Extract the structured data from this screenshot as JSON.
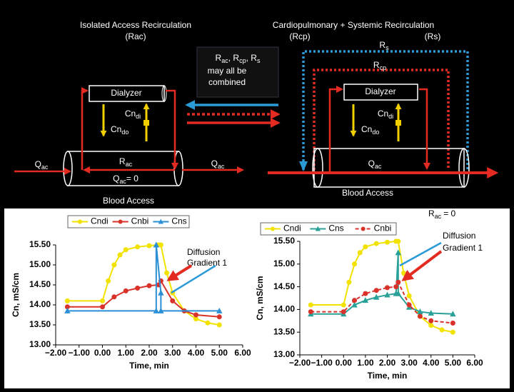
{
  "diagram": {
    "left": {
      "title": "Isolated Access Recirculation",
      "subtitle": "(Rac)",
      "dialyzer": "Dialyzer",
      "cn_di": {
        "base": "Cn",
        "sub": "di"
      },
      "cn_do": {
        "base": "Cn",
        "sub": "do"
      },
      "q_in": {
        "base": "Q",
        "sub": "ac"
      },
      "q_out": {
        "base": "Q",
        "sub": "ac"
      },
      "r_ac": {
        "base": "R",
        "sub": "ac"
      },
      "q_zero": {
        "base": "Q",
        "sub": "ac",
        "rest": "= 0"
      },
      "access": "Blood Access"
    },
    "note": {
      "line1": [
        {
          "base": "R",
          "sub": "ac"
        },
        {
          "base": ", R",
          "sub": "cp"
        },
        {
          "base": ", R",
          "sub": "s"
        }
      ],
      "line2": "may all be",
      "line3": "combined"
    },
    "right": {
      "title": "Cardiopulmonary + Systemic Recirculation",
      "rcp": "(Rcp)",
      "rs": "(Rs)",
      "r_s": {
        "base": "R",
        "sub": "s"
      },
      "r_cp": {
        "base": "R",
        "sub": "cp"
      },
      "dialyzer": "Dialyzer",
      "cn_di": {
        "base": "Cn",
        "sub": "di"
      },
      "cn_do": {
        "base": "Cn",
        "sub": "do"
      },
      "q_ac": {
        "base": "Q",
        "sub": "ac"
      },
      "access": "Blood Access"
    }
  },
  "chart_data": [
    {
      "type": "line",
      "x_label": "Time, min",
      "y_label": "Cn, mS/cm",
      "annotation": [
        "Diffusion",
        "Gradient 1"
      ],
      "xlim": [
        -2,
        6
      ],
      "ylim": [
        13,
        15.5
      ],
      "xticks": [
        {
          "value": -2,
          "label": "−2.00"
        },
        {
          "value": -1,
          "label": "−1.00"
        },
        {
          "value": 0,
          "label": "0.00"
        },
        {
          "value": 1,
          "label": "1.00"
        },
        {
          "value": 2,
          "label": "2.00"
        },
        {
          "value": 3,
          "label": "3.00"
        },
        {
          "value": 4,
          "label": "4.00"
        },
        {
          "value": 5,
          "label": "5.00"
        },
        {
          "value": 6,
          "label": "6.00"
        }
      ],
      "yticks": [
        {
          "value": 13,
          "label": "13.00"
        },
        {
          "value": 13.5,
          "label": "13.50"
        },
        {
          "value": 14,
          "label": "14.00"
        },
        {
          "value": 14.5,
          "label": "14.50"
        },
        {
          "value": 15,
          "label": "15.00"
        },
        {
          "value": 15.5,
          "label": "15.50"
        }
      ],
      "series": [
        {
          "name": "Cndi",
          "color": "#f2e200",
          "marker": "circle",
          "dash": false,
          "x": [
            -1.5,
            0,
            0.25,
            0.5,
            0.75,
            1.0,
            1.5,
            2.0,
            2.4,
            2.5,
            2.75,
            3.0,
            3.5,
            4.0,
            4.5,
            5.0
          ],
          "values": [
            14.1,
            14.1,
            14.6,
            15.0,
            15.25,
            15.38,
            15.45,
            15.48,
            15.5,
            15.5,
            14.8,
            14.3,
            13.85,
            13.65,
            13.55,
            13.5
          ]
        },
        {
          "name": "Cnbi",
          "color": "#d8322a",
          "marker": "circle",
          "dash": false,
          "x": [
            -1.5,
            0,
            0.5,
            1.0,
            1.5,
            2.0,
            2.4,
            2.5,
            3.0,
            3.5,
            4.0,
            5.0
          ],
          "values": [
            13.95,
            13.95,
            14.2,
            14.35,
            14.42,
            14.48,
            14.5,
            14.6,
            14.1,
            13.85,
            13.75,
            13.7
          ]
        },
        {
          "name": "Cns",
          "color": "#2b8fd6",
          "marker": "triangle",
          "dash": false,
          "x": [
            -1.5,
            2.3,
            2.3,
            2.5,
            2.5,
            5.0
          ],
          "values": [
            13.85,
            13.85,
            15.5,
            14.3,
            13.85,
            13.85
          ]
        }
      ]
    },
    {
      "type": "line",
      "x_label": "Time, min",
      "y_label": "Cn, mS/cm",
      "annotation": [
        "Diffusion",
        "Gradient 1"
      ],
      "note": {
        "base": "R",
        "sub": "ac",
        "rest": "= 0"
      },
      "xlim": [
        -2,
        6
      ],
      "ylim": [
        13,
        15.5
      ],
      "xticks": [
        {
          "value": -2,
          "label": "−2.00"
        },
        {
          "value": -1,
          "label": "−1.00"
        },
        {
          "value": 0,
          "label": "0.00"
        },
        {
          "value": 1,
          "label": "1.00"
        },
        {
          "value": 2,
          "label": "2.00"
        },
        {
          "value": 3,
          "label": "3.00"
        },
        {
          "value": 4,
          "label": "4.00"
        },
        {
          "value": 5,
          "label": "5.00"
        },
        {
          "value": 6,
          "label": "6.00"
        }
      ],
      "yticks": [
        {
          "value": 13,
          "label": "13.00"
        },
        {
          "value": 13.5,
          "label": "13.50"
        },
        {
          "value": 14,
          "label": "14.00"
        },
        {
          "value": 14.5,
          "label": "14.50"
        },
        {
          "value": 15,
          "label": "15.00"
        },
        {
          "value": 15.5,
          "label": "15.50"
        }
      ],
      "series": [
        {
          "name": "Cndi",
          "color": "#f2e200",
          "marker": "circle",
          "dash": false,
          "x": [
            -1.5,
            0,
            0.25,
            0.5,
            0.75,
            1.0,
            1.5,
            2.0,
            2.4,
            2.5,
            2.75,
            3.0,
            3.5,
            4.0,
            4.5,
            5.0
          ],
          "values": [
            14.1,
            14.1,
            14.6,
            15.0,
            15.25,
            15.38,
            15.45,
            15.48,
            15.5,
            15.5,
            14.8,
            14.3,
            13.85,
            13.65,
            13.55,
            13.5
          ]
        },
        {
          "name": "Cns",
          "color": "#2aa198",
          "marker": "triangle",
          "dash": false,
          "x": [
            -1.5,
            0,
            0.5,
            1.0,
            1.5,
            2.0,
            2.4,
            2.5,
            2.5,
            3.0,
            3.5,
            4.0,
            5.0
          ],
          "values": [
            13.9,
            13.9,
            14.1,
            14.2,
            14.27,
            14.32,
            14.35,
            15.25,
            14.35,
            14.05,
            13.95,
            13.92,
            13.9
          ]
        },
        {
          "name": "Cnbi",
          "color": "#d8322a",
          "marker": "circle",
          "dash": true,
          "x": [
            -1.5,
            0,
            0.5,
            1.0,
            1.5,
            2.0,
            2.4,
            2.5,
            3.0,
            3.5,
            4.0,
            5.0
          ],
          "values": [
            13.95,
            13.95,
            14.2,
            14.35,
            14.42,
            14.48,
            14.5,
            14.6,
            14.1,
            13.85,
            13.75,
            13.7
          ]
        }
      ]
    }
  ]
}
